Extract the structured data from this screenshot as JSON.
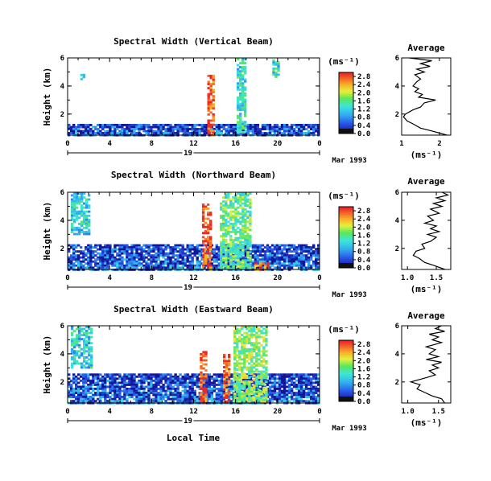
{
  "figure": {
    "xlabel": "Local Time",
    "date_label": "Mar 1993",
    "date_tick": "19"
  },
  "colorbar_unit": "(ms⁻¹)",
  "avg_title": "Average",
  "avg_xlabel": "(ms⁻¹)",
  "chart_data": [
    {
      "type": "heatmap",
      "title": "Spectral Width (Vertical Beam)",
      "xlabel": "Local Time",
      "ylabel": "Height (km)",
      "x_ticks": [
        "0",
        "4",
        "8",
        "12",
        "16",
        "20",
        "0"
      ],
      "y_ticks": [
        "2",
        "4",
        "6"
      ],
      "xlim": [
        0,
        24
      ],
      "ylim": [
        0.5,
        6.0
      ],
      "colorbar": {
        "ticks": [
          "0.0",
          "0.4",
          "0.8",
          "1.2",
          "1.6",
          "2.0",
          "2.4",
          "2.8"
        ],
        "range": [
          0,
          3.0
        ]
      },
      "features": [
        {
          "t0": 0,
          "t1": 24,
          "h0": 0.5,
          "h1": 1.3,
          "level": 0.5
        },
        {
          "t0": 13.3,
          "t1": 13.8,
          "h0": 0.5,
          "h1": 4.8,
          "level": 2.9
        },
        {
          "t0": 16.1,
          "t1": 16.9,
          "h0": 0.7,
          "h1": 6.0,
          "level": 1.3
        },
        {
          "t0": 1.2,
          "t1": 1.6,
          "h0": 4.5,
          "h1": 5.3,
          "level": 1.0
        },
        {
          "t0": 19.5,
          "t1": 20.1,
          "h0": 4.6,
          "h1": 5.9,
          "level": 1.3
        }
      ],
      "profile": {
        "title": "Average",
        "x_ticks": [
          "1",
          "2"
        ],
        "xlim": [
          1,
          2.3
        ],
        "y_ticks": [
          "2",
          "4",
          "6"
        ],
        "heights": [
          0.5,
          0.8,
          1.0,
          1.3,
          1.5,
          1.8,
          2.0,
          2.3,
          2.5,
          2.8,
          3.0,
          3.2,
          3.4,
          3.6,
          3.8,
          4.0,
          4.3,
          4.5,
          4.8,
          5.0,
          5.2,
          5.4,
          5.6,
          5.8,
          6.0
        ],
        "values": [
          2.2,
          1.8,
          1.5,
          1.3,
          1.15,
          1.05,
          1.1,
          1.3,
          1.5,
          1.6,
          1.9,
          1.45,
          1.55,
          1.35,
          1.45,
          1.3,
          1.4,
          1.5,
          1.35,
          1.6,
          1.4,
          1.75,
          1.5,
          1.8,
          1.2
        ]
      }
    },
    {
      "type": "heatmap",
      "title": "Spectral Width (Northward Beam)",
      "xlabel": "Local Time",
      "ylabel": "Height (km)",
      "x_ticks": [
        "0",
        "4",
        "8",
        "12",
        "16",
        "20",
        "0"
      ],
      "y_ticks": [
        "2",
        "4",
        "6"
      ],
      "xlim": [
        0,
        24
      ],
      "ylim": [
        0.5,
        6.0
      ],
      "colorbar": {
        "ticks": [
          "0.0",
          "0.4",
          "0.8",
          "1.2",
          "1.6",
          "2.0",
          "2.4",
          "2.8"
        ],
        "range": [
          0,
          3.0
        ]
      },
      "features": [
        {
          "t0": 0,
          "t1": 24,
          "h0": 0.5,
          "h1": 2.3,
          "level": 0.5
        },
        {
          "t0": 12.8,
          "t1": 13.7,
          "h0": 0.5,
          "h1": 5.2,
          "level": 2.9
        },
        {
          "t0": 14.5,
          "t1": 17.5,
          "h0": 0.5,
          "h1": 6.0,
          "level": 1.6
        },
        {
          "t0": 17.8,
          "t1": 19.0,
          "h0": 0.5,
          "h1": 1.0,
          "level": 2.7
        },
        {
          "t0": 0.3,
          "t1": 2.0,
          "h0": 3.0,
          "h1": 6.0,
          "level": 1.2
        }
      ],
      "profile": {
        "title": "Average",
        "x_ticks": [
          "1.0",
          "1.5"
        ],
        "xlim": [
          0.9,
          1.75
        ],
        "y_ticks": [
          "2",
          "4",
          "6"
        ],
        "heights": [
          0.5,
          0.8,
          1.0,
          1.3,
          1.5,
          1.8,
          2.0,
          2.3,
          2.5,
          2.8,
          3.0,
          3.2,
          3.4,
          3.6,
          3.8,
          4.0,
          4.3,
          4.5,
          4.8,
          5.0,
          5.2,
          5.4,
          5.6,
          5.8,
          6.0
        ],
        "values": [
          1.65,
          1.45,
          1.3,
          1.2,
          1.1,
          1.15,
          1.3,
          1.25,
          1.4,
          1.5,
          1.35,
          1.55,
          1.4,
          1.5,
          1.3,
          1.45,
          1.35,
          1.55,
          1.4,
          1.6,
          1.45,
          1.65,
          1.5,
          1.7,
          1.6
        ]
      }
    },
    {
      "type": "heatmap",
      "title": "Spectral Width (Eastward Beam)",
      "xlabel": "Local Time",
      "ylabel": "Height (km)",
      "x_ticks": [
        "0",
        "4",
        "8",
        "12",
        "16",
        "20",
        "0"
      ],
      "y_ticks": [
        "2",
        "4",
        "6"
      ],
      "xlim": [
        0,
        24
      ],
      "ylim": [
        0.5,
        6.0
      ],
      "colorbar": {
        "ticks": [
          "0.0",
          "0.4",
          "0.8",
          "1.2",
          "1.6",
          "2.0",
          "2.4",
          "2.8"
        ],
        "range": [
          0,
          3.0
        ]
      },
      "features": [
        {
          "t0": 0,
          "t1": 24,
          "h0": 0.5,
          "h1": 2.6,
          "level": 0.5
        },
        {
          "t0": 12.6,
          "t1": 13.2,
          "h0": 0.5,
          "h1": 4.2,
          "level": 2.9
        },
        {
          "t0": 14.8,
          "t1": 15.3,
          "h0": 0.5,
          "h1": 4.0,
          "level": 2.8
        },
        {
          "t0": 15.8,
          "t1": 19.0,
          "h0": 0.5,
          "h1": 6.0,
          "level": 1.8
        },
        {
          "t0": 0.3,
          "t1": 2.2,
          "h0": 3.0,
          "h1": 6.0,
          "level": 1.2
        }
      ],
      "profile": {
        "title": "Average",
        "x_ticks": [
          "1.0",
          "1.5"
        ],
        "xlim": [
          0.9,
          1.7
        ],
        "y_ticks": [
          "2",
          "4",
          "6"
        ],
        "heights": [
          0.5,
          0.8,
          1.0,
          1.3,
          1.5,
          1.8,
          2.0,
          2.3,
          2.5,
          2.8,
          3.0,
          3.2,
          3.4,
          3.6,
          3.8,
          4.0,
          4.3,
          4.5,
          4.8,
          5.0,
          5.2,
          5.4,
          5.6,
          5.8,
          6.0
        ],
        "values": [
          1.6,
          1.55,
          1.4,
          1.25,
          1.15,
          1.2,
          1.05,
          1.3,
          1.45,
          1.35,
          1.5,
          1.4,
          1.55,
          1.3,
          1.5,
          1.35,
          1.45,
          1.3,
          1.55,
          1.4,
          1.5,
          1.35,
          1.6,
          1.45,
          1.55
        ]
      }
    }
  ]
}
